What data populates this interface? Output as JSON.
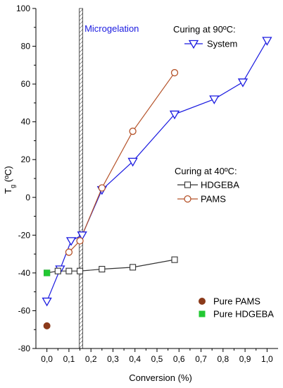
{
  "chart_data": {
    "type": "line",
    "title": "",
    "xlabel": "Conversion (%)",
    "ylabel_main": "T",
    "ylabel_sub": "g",
    "ylabel_unit": " (ºC)",
    "xlim": [
      -0.05,
      1.05
    ],
    "ylim": [
      -80,
      100
    ],
    "x_ticks": [
      0.0,
      0.1,
      0.2,
      0.3,
      0.4,
      0.5,
      0.6,
      0.7,
      0.8,
      0.9,
      1.0
    ],
    "x_tick_labels": [
      "0,0",
      "0,1",
      "0,2",
      "0,3",
      "0,4",
      "0,5",
      "0,6",
      "0,7",
      "0,8",
      "0,9",
      "1,0"
    ],
    "y_ticks": [
      -80,
      -60,
      -40,
      -20,
      0,
      20,
      40,
      60,
      80,
      100
    ],
    "y_tick_labels": [
      "-80",
      "-60",
      "-40",
      "-20",
      "0",
      "20",
      "40",
      "60",
      "80",
      "100"
    ],
    "grid": false,
    "microgelation": {
      "label": "Microgelation",
      "x": 0.155
    },
    "legend_90": {
      "heading": "Curing at 90ºC:",
      "entries": [
        {
          "series": "System",
          "label": "System"
        }
      ]
    },
    "legend_40": {
      "heading": "Curing at 40ºC:",
      "entries": [
        {
          "series": "HDGEBA",
          "label": "HDGEBA"
        },
        {
          "series": "PAMS",
          "label": "PAMS"
        }
      ]
    },
    "legend_pure": {
      "entries": [
        {
          "series": "Pure PAMS",
          "label": "Pure PAMS"
        },
        {
          "series": "Pure HDGEBA",
          "label": "Pure HDGEBA"
        }
      ]
    },
    "series": [
      {
        "name": "System",
        "marker": "triangle-down",
        "color": "#1a1ae0",
        "line": true,
        "x": [
          0.0,
          0.06,
          0.11,
          0.16,
          0.25,
          0.39,
          0.58,
          0.76,
          0.89,
          1.0
        ],
        "y": [
          -55,
          -38,
          -23,
          -20,
          4,
          19,
          44,
          52,
          61,
          83
        ]
      },
      {
        "name": "HDGEBA",
        "marker": "square-open",
        "color": "#333333",
        "line": true,
        "x": [
          0.0,
          0.05,
          0.1,
          0.15,
          0.25,
          0.39,
          0.58
        ],
        "y": [
          -40,
          -39,
          -39,
          -39,
          -38,
          -37,
          -33
        ]
      },
      {
        "name": "PAMS",
        "marker": "circle-open",
        "color": "#b5532a",
        "line": true,
        "x": [
          0.1,
          0.15,
          0.25,
          0.39,
          0.58
        ],
        "y": [
          -29,
          -23,
          5,
          35,
          66
        ]
      },
      {
        "name": "Pure PAMS",
        "marker": "circle-filled",
        "color": "#8b3a1a",
        "line": false,
        "x": [
          0.0
        ],
        "y": [
          -68
        ]
      },
      {
        "name": "Pure HDGEBA",
        "marker": "square-filled",
        "color": "#22c832",
        "line": false,
        "x": [
          0.0
        ],
        "y": [
          -40
        ]
      }
    ],
    "colors": {
      "axis": "#000000",
      "microgelation_label": "#1a1ae0"
    }
  }
}
